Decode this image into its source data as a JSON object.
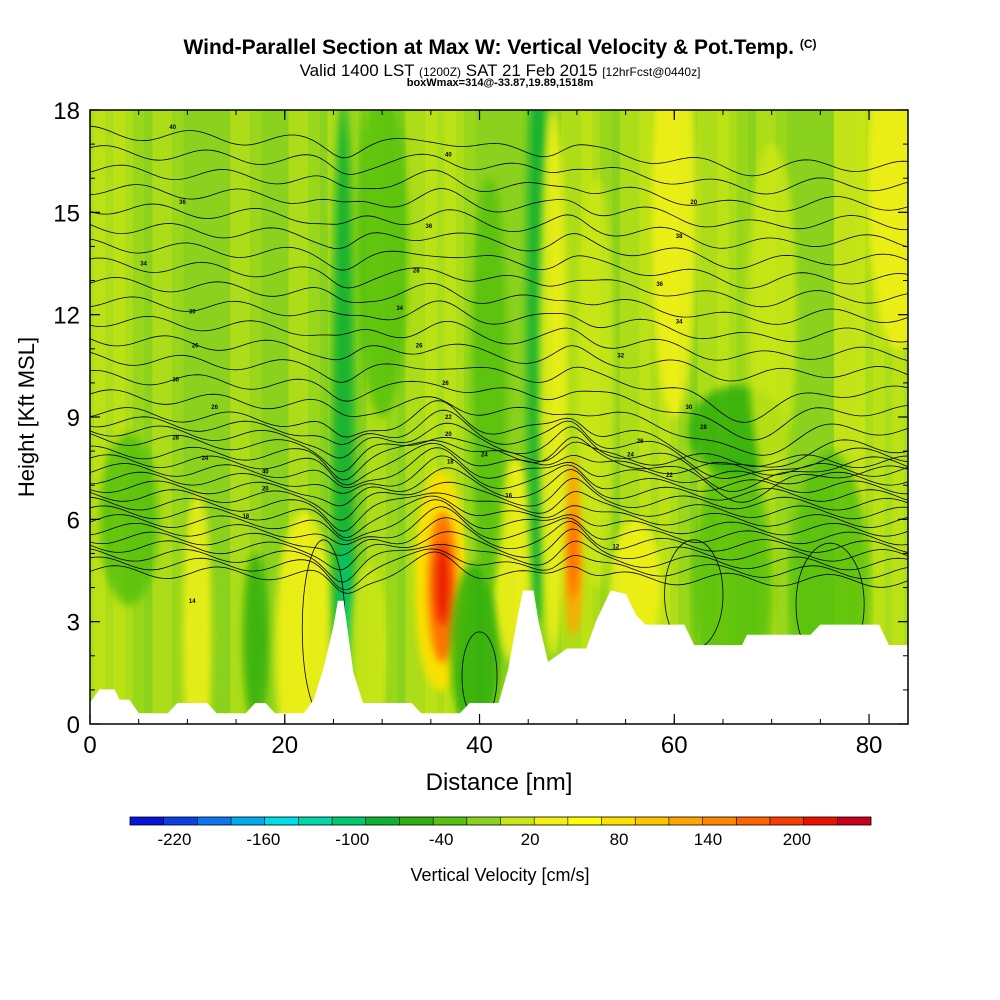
{
  "chart_data": {
    "type": "heatmap",
    "title": "Wind-Parallel Section at Max W: Vertical Velocity & Pot.Temp.",
    "title_tag": "(C)",
    "subtitle_main": "Valid 1400 LST",
    "subtitle_utc": "(1200Z)",
    "subtitle_date": "SAT 21 Feb 2015",
    "subtitle_fcst": "[12hrFcst@0440z]",
    "subtitle2": "boxWmax=314@-33.87,19.89,1518m",
    "xlabel": "Distance [nm]",
    "ylabel": "Height [Kft MSL]",
    "xlim": [
      0,
      84
    ],
    "ylim": [
      0,
      18
    ],
    "x_ticks": [
      "0",
      "20",
      "40",
      "60",
      "80"
    ],
    "y_ticks": [
      "0",
      "3",
      "6",
      "9",
      "12",
      "15",
      "18"
    ],
    "colorbar": {
      "label": "Vertical Velocity [cm/s]",
      "min": -250,
      "max": 250,
      "step": 20,
      "tick_labels": [
        "-220",
        "-160",
        "-100",
        "-40",
        "20",
        "80",
        "140",
        "200"
      ],
      "tick_values": [
        -220,
        -160,
        -100,
        -40,
        20,
        80,
        140,
        200
      ],
      "colors": [
        "#0a14d8",
        "#0a40e6",
        "#0a78f0",
        "#00aaee",
        "#00dde6",
        "#00d8aa",
        "#00c870",
        "#10b030",
        "#30b010",
        "#58c210",
        "#8ad21e",
        "#c8e614",
        "#f0f014",
        "#ffff00",
        "#ffe000",
        "#ffc400",
        "#ffa600",
        "#ff8600",
        "#ff6400",
        "#f83c00",
        "#e81000",
        "#c8001e"
      ]
    },
    "terrain_kft": [
      [
        0,
        0.6
      ],
      [
        1,
        1.0
      ],
      [
        2.5,
        1.0
      ],
      [
        3,
        0.7
      ],
      [
        4,
        0.7
      ],
      [
        5,
        0.3
      ],
      [
        8,
        0.3
      ],
      [
        9,
        0.6
      ],
      [
        12,
        0.6
      ],
      [
        13,
        0.3
      ],
      [
        16,
        0.3
      ],
      [
        17,
        0.6
      ],
      [
        18,
        0.6
      ],
      [
        19,
        0.3
      ],
      [
        22,
        0.3
      ],
      [
        23,
        0.7
      ],
      [
        24,
        1.6
      ],
      [
        25,
        2.8
      ],
      [
        25.5,
        3.6
      ],
      [
        26,
        3.6
      ],
      [
        27,
        1.5
      ],
      [
        28,
        0.6
      ],
      [
        33,
        0.6
      ],
      [
        34,
        0.3
      ],
      [
        38,
        0.3
      ],
      [
        39,
        0.6
      ],
      [
        42,
        0.6
      ],
      [
        43,
        1.6
      ],
      [
        44,
        3.2
      ],
      [
        44.5,
        3.9
      ],
      [
        45.5,
        3.9
      ],
      [
        46,
        3.0
      ],
      [
        47,
        1.8
      ],
      [
        49,
        2.2
      ],
      [
        51,
        2.2
      ],
      [
        52,
        3.0
      ],
      [
        53,
        3.6
      ],
      [
        53.5,
        3.9
      ],
      [
        55,
        3.8
      ],
      [
        56,
        3.2
      ],
      [
        57,
        2.9
      ],
      [
        61,
        2.9
      ],
      [
        62,
        2.3
      ],
      [
        67,
        2.3
      ],
      [
        67.5,
        2.6
      ],
      [
        74,
        2.6
      ],
      [
        75,
        2.9
      ],
      [
        81,
        2.9
      ],
      [
        82,
        2.3
      ],
      [
        84,
        2.3
      ]
    ],
    "theta_contour_labels": [
      {
        "label": "40",
        "x": 8.5,
        "y": 17.5
      },
      {
        "label": "36",
        "x": 9.5,
        "y": 15.3
      },
      {
        "label": "34",
        "x": 5.5,
        "y": 13.5
      },
      {
        "label": "30",
        "x": 10.5,
        "y": 12.1
      },
      {
        "label": "26",
        "x": 10.8,
        "y": 11.1
      },
      {
        "label": "30",
        "x": 8.8,
        "y": 10.1
      },
      {
        "label": "26",
        "x": 12.8,
        "y": 9.3
      },
      {
        "label": "28",
        "x": 8.8,
        "y": 8.4
      },
      {
        "label": "24",
        "x": 11.8,
        "y": 7.8
      },
      {
        "label": "40",
        "x": 18.0,
        "y": 7.4
      },
      {
        "label": "20",
        "x": 18.0,
        "y": 6.9
      },
      {
        "label": "18",
        "x": 16.0,
        "y": 6.1
      },
      {
        "label": "14",
        "x": 10.5,
        "y": 3.6
      },
      {
        "label": "40",
        "x": 36.8,
        "y": 16.7
      },
      {
        "label": "36",
        "x": 34.8,
        "y": 14.6
      },
      {
        "label": "28",
        "x": 33.5,
        "y": 13.3
      },
      {
        "label": "34",
        "x": 31.8,
        "y": 12.2
      },
      {
        "label": "26",
        "x": 33.8,
        "y": 11.1
      },
      {
        "label": "26",
        "x": 36.5,
        "y": 10.0
      },
      {
        "label": "22",
        "x": 36.8,
        "y": 9.0
      },
      {
        "label": "20",
        "x": 36.8,
        "y": 8.5
      },
      {
        "label": "18",
        "x": 37.0,
        "y": 7.7
      },
      {
        "label": "24",
        "x": 40.5,
        "y": 7.9
      },
      {
        "label": "16",
        "x": 43.0,
        "y": 6.7
      },
      {
        "label": "20",
        "x": 62.0,
        "y": 15.3
      },
      {
        "label": "38",
        "x": 60.5,
        "y": 14.3
      },
      {
        "label": "36",
        "x": 58.5,
        "y": 12.9
      },
      {
        "label": "34",
        "x": 60.5,
        "y": 11.8
      },
      {
        "label": "32",
        "x": 54.5,
        "y": 10.8
      },
      {
        "label": "30",
        "x": 61.5,
        "y": 9.3
      },
      {
        "label": "28",
        "x": 63.0,
        "y": 8.7
      },
      {
        "label": "26",
        "x": 56.5,
        "y": 8.3
      },
      {
        "label": "24",
        "x": 55.5,
        "y": 7.9
      },
      {
        "label": "22",
        "x": 59.5,
        "y": 7.3
      },
      {
        "label": "12",
        "x": 54.0,
        "y": 5.2
      }
    ]
  }
}
